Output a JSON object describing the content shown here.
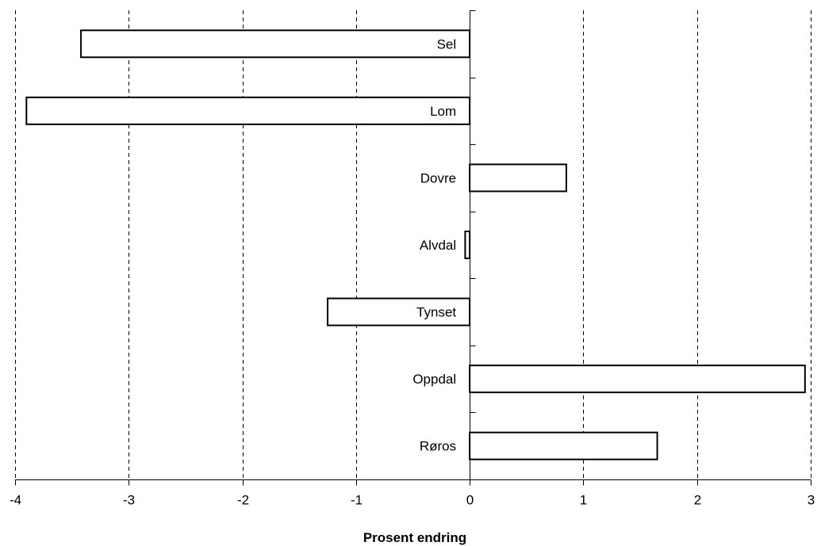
{
  "chart_data": {
    "type": "bar",
    "orientation": "horizontal",
    "categories": [
      "Sel",
      "Lom",
      "Dovre",
      "Alvdal",
      "Tynset",
      "Oppdal",
      "Røros"
    ],
    "values": [
      -3.42,
      -3.9,
      0.85,
      -0.04,
      -1.25,
      2.95,
      1.65
    ],
    "xlabel": "Prosent endring",
    "ylabel": "",
    "xlim": [
      -4,
      3
    ],
    "xticks": [
      -4,
      -3,
      -2,
      -1,
      0,
      1,
      2,
      3
    ],
    "xtick_labels": [
      "-4",
      "-3",
      "-2",
      "-1",
      "0",
      "1",
      "2",
      "3"
    ],
    "grid": "vertical dashed",
    "legend": "none",
    "bar_fill": "#ffffff",
    "bar_stroke": "#000000"
  }
}
